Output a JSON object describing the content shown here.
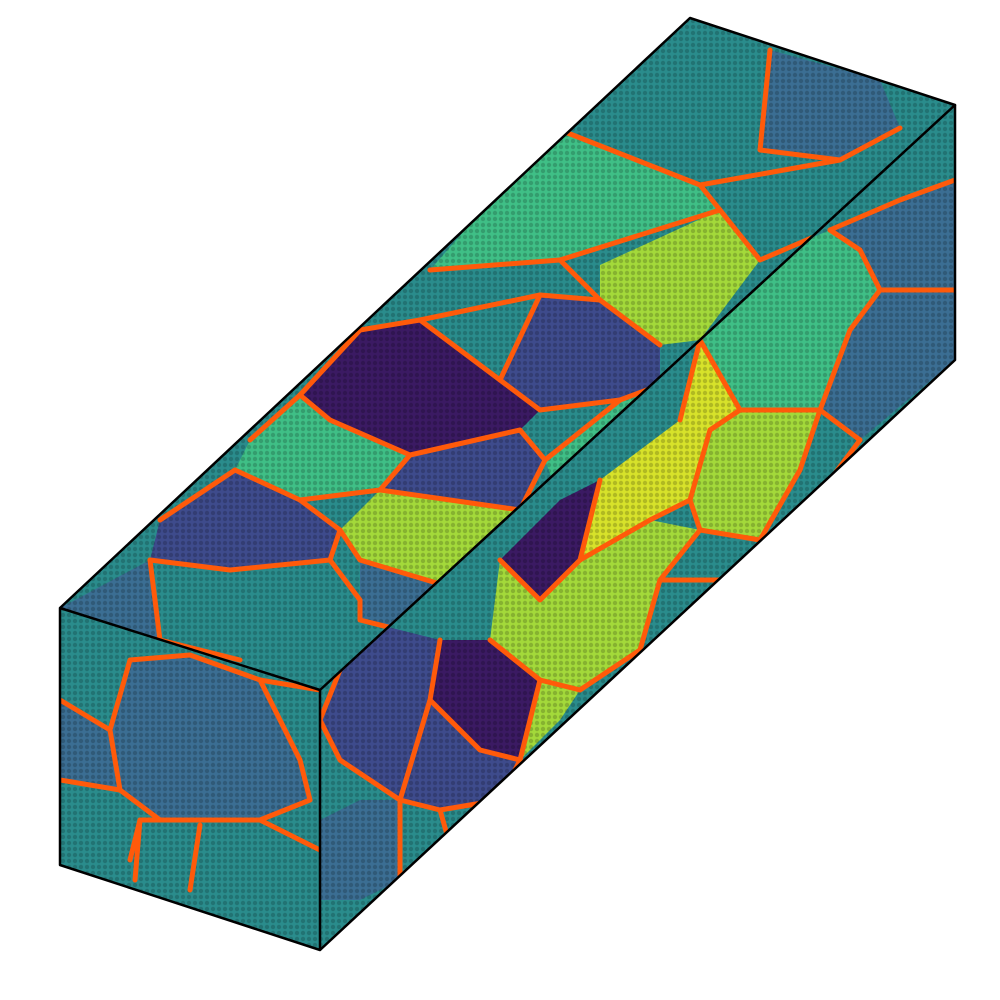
{
  "figure": {
    "type": "polycrystal-render",
    "palette": {
      "teal": "#2a8c8c",
      "blue": "#3b6e93",
      "indigo": "#3e4b8c",
      "purple": "#3b1a63",
      "green": "#3fbf86",
      "lime": "#a3d93a",
      "yellow": "#d7e22a",
      "grain_boundary": "#ff5a0a",
      "box_edge": "#000000"
    }
  }
}
